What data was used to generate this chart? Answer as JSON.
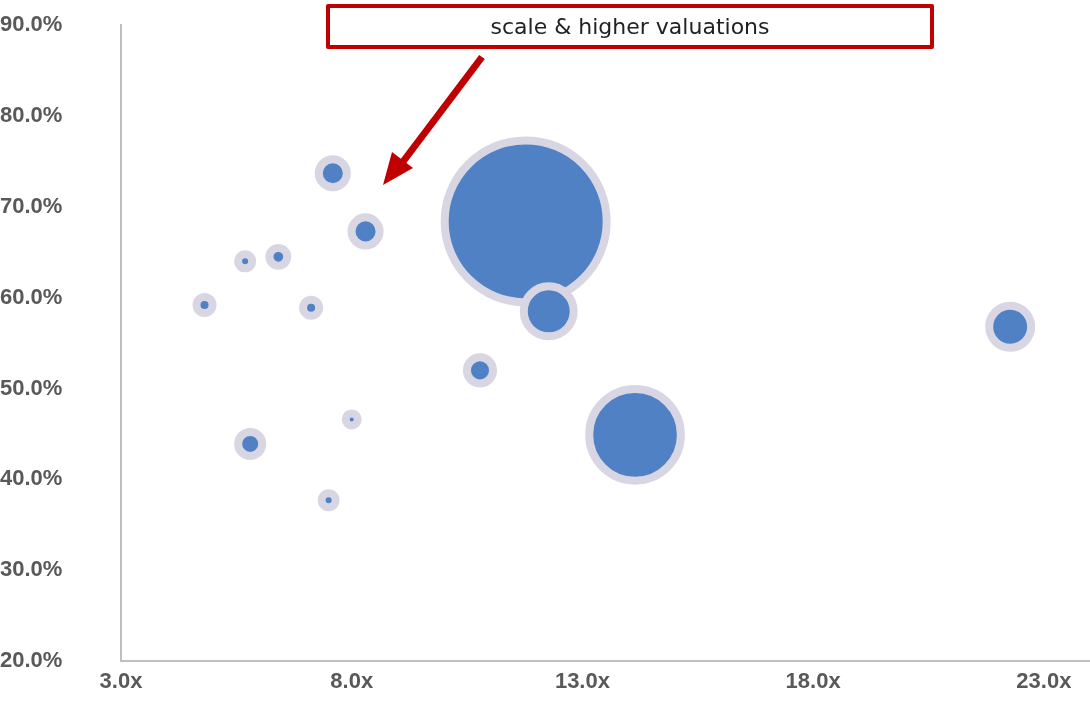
{
  "chart_data": {
    "type": "bubble",
    "annotations": [
      "scale & higher valuations"
    ],
    "series": [
      {
        "color": "#4f81c4",
        "x": [
          7.59,
          8.3,
          5.69,
          6.41,
          4.81,
          7.12,
          8.0,
          5.8,
          7.5,
          11.77,
          12.27,
          10.78,
          14.14,
          22.27
        ],
        "values": [
          73.7,
          67.3,
          64.0,
          64.5,
          59.2,
          58.9,
          46.6,
          43.9,
          37.7,
          68.4,
          58.5,
          52.0,
          44.9,
          56.8
        ],
        "sizes": [
          0.03,
          0.03,
          0.0075,
          0.012,
          0.0098,
          0.0098,
          0.0055,
          0.022,
          0.0075,
          1,
          0.095,
          0.026,
          0.32,
          0.067
        ]
      }
    ],
    "xlim": [
      3,
      24
    ],
    "xticks": [
      {
        "value": 3,
        "label": "3.0x"
      },
      {
        "value": 8,
        "label": "8.0x"
      },
      {
        "value": 13,
        "label": "13.0x"
      },
      {
        "value": 18,
        "label": "18.0x"
      },
      {
        "value": 23,
        "label": "23.0x"
      }
    ],
    "ylim": [
      20,
      90
    ],
    "yticks": [
      {
        "value": 20,
        "label": "20.0%"
      },
      {
        "value": 30,
        "label": "30.0%"
      },
      {
        "value": 40,
        "label": "40.0%"
      },
      {
        "value": 50,
        "label": "50.0%"
      },
      {
        "value": 60,
        "label": "60.0%"
      },
      {
        "value": 70,
        "label": "70.0%"
      },
      {
        "value": 80,
        "label": "80.0%"
      },
      {
        "value": 90,
        "label": "90.0%"
      }
    ],
    "grid": false,
    "legend": false
  }
}
